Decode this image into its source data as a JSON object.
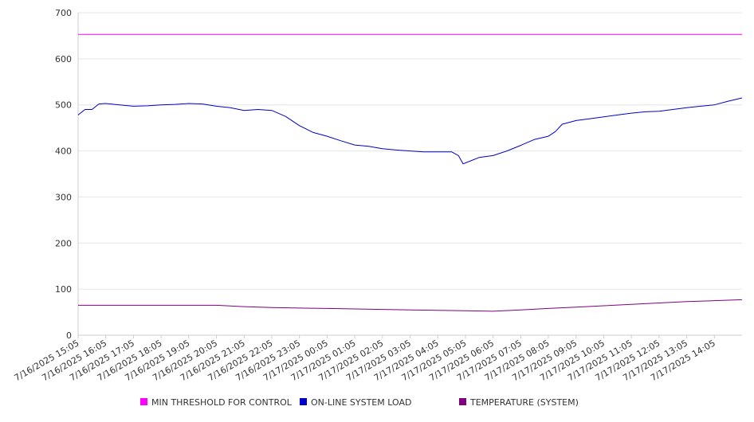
{
  "chart_data": {
    "type": "line",
    "title": "",
    "xlabel": "",
    "ylabel": "",
    "ylim": [
      0,
      700
    ],
    "yticks": [
      0,
      100,
      200,
      300,
      400,
      500,
      600,
      700
    ],
    "grid": "horizontal",
    "legend_position": "bottom",
    "x_range": [
      "7/16/2025 15:05",
      "7/17/2025 15:05"
    ],
    "xtick_labels": [
      "7/16/2025 15:05",
      "7/16/2025 16:05",
      "7/16/2025 17:05",
      "7/16/2025 18:05",
      "7/16/2025 19:05",
      "7/16/2025 20:05",
      "7/16/2025 21:05",
      "7/16/2025 22:05",
      "7/16/2025 23:05",
      "7/17/2025 00:05",
      "7/17/2025 01:05",
      "7/17/2025 02:05",
      "7/17/2025 03:05",
      "7/17/2025 04:05",
      "7/17/2025 05:05",
      "7/17/2025 06:05",
      "7/17/2025 07:05",
      "7/17/2025 08:05",
      "7/17/2025 09:05",
      "7/17/2025 10:05",
      "7/17/2025 11:05",
      "7/17/2025 12:05",
      "7/17/2025 13:05",
      "7/17/2025 14:05"
    ],
    "series": [
      {
        "name": "MIN THRESHOLD FOR CONTROL",
        "color": "#ff00ff",
        "x": [
          "7/16/2025 15:05",
          "7/17/2025 15:05"
        ],
        "y": [
          653,
          653
        ]
      },
      {
        "name": "ON-LINE SYSTEM LOAD",
        "color": "#0000cc",
        "x": [
          "7/16/2025 15:05",
          "7/16/2025 15:20",
          "7/16/2025 15:35",
          "7/16/2025 15:50",
          "7/16/2025 16:05",
          "7/16/2025 16:35",
          "7/16/2025 17:05",
          "7/16/2025 17:35",
          "7/16/2025 18:05",
          "7/16/2025 18:35",
          "7/16/2025 19:05",
          "7/16/2025 19:35",
          "7/16/2025 20:05",
          "7/16/2025 20:35",
          "7/16/2025 21:05",
          "7/16/2025 21:35",
          "7/16/2025 22:05",
          "7/16/2025 22:35",
          "7/16/2025 23:05",
          "7/16/2025 23:35",
          "7/17/2025 00:05",
          "7/17/2025 00:35",
          "7/17/2025 01:05",
          "7/17/2025 01:35",
          "7/17/2025 02:05",
          "7/17/2025 02:35",
          "7/17/2025 03:05",
          "7/17/2025 03:35",
          "7/17/2025 04:05",
          "7/17/2025 04:35",
          "7/17/2025 04:50",
          "7/17/2025 05:00",
          "7/17/2025 05:10",
          "7/17/2025 05:35",
          "7/17/2025 06:05",
          "7/17/2025 06:35",
          "7/17/2025 07:05",
          "7/17/2025 07:35",
          "7/17/2025 08:05",
          "7/17/2025 08:20",
          "7/17/2025 08:35",
          "7/17/2025 09:05",
          "7/17/2025 09:35",
          "7/17/2025 10:05",
          "7/17/2025 10:35",
          "7/17/2025 11:05",
          "7/17/2025 11:35",
          "7/17/2025 12:05",
          "7/17/2025 12:35",
          "7/17/2025 13:05",
          "7/17/2025 13:35",
          "7/17/2025 14:05",
          "7/17/2025 14:35",
          "7/17/2025 15:05"
        ],
        "y": [
          478,
          490,
          490,
          502,
          503,
          500,
          497,
          498,
          500,
          501,
          503,
          502,
          497,
          494,
          488,
          490,
          488,
          475,
          455,
          440,
          432,
          422,
          413,
          410,
          405,
          402,
          400,
          398,
          398,
          398,
          390,
          372,
          376,
          386,
          390,
          400,
          412,
          425,
          432,
          442,
          458,
          466,
          470,
          474,
          478,
          482,
          485,
          486,
          490,
          494,
          497,
          500,
          508,
          515
        ]
      },
      {
        "name": "TEMPERATURE (SYSTEM)",
        "color": "#800080",
        "x": [
          "7/16/2025 15:05",
          "7/16/2025 17:05",
          "7/16/2025 19:05",
          "7/16/2025 20:05",
          "7/16/2025 21:05",
          "7/16/2025 22:05",
          "7/16/2025 23:05",
          "7/17/2025 00:05",
          "7/17/2025 01:05",
          "7/17/2025 02:05",
          "7/17/2025 03:05",
          "7/17/2025 04:05",
          "7/17/2025 05:05",
          "7/17/2025 06:05",
          "7/17/2025 07:05",
          "7/17/2025 08:05",
          "7/17/2025 09:05",
          "7/17/2025 10:05",
          "7/17/2025 11:05",
          "7/17/2025 12:05",
          "7/17/2025 13:05",
          "7/17/2025 14:05",
          "7/17/2025 15:05"
        ],
        "y": [
          65,
          65,
          65,
          65,
          62,
          60,
          59,
          58,
          57,
          56,
          55,
          54,
          53,
          52,
          55,
          58,
          61,
          64,
          67,
          70,
          73,
          75,
          77
        ]
      }
    ]
  }
}
